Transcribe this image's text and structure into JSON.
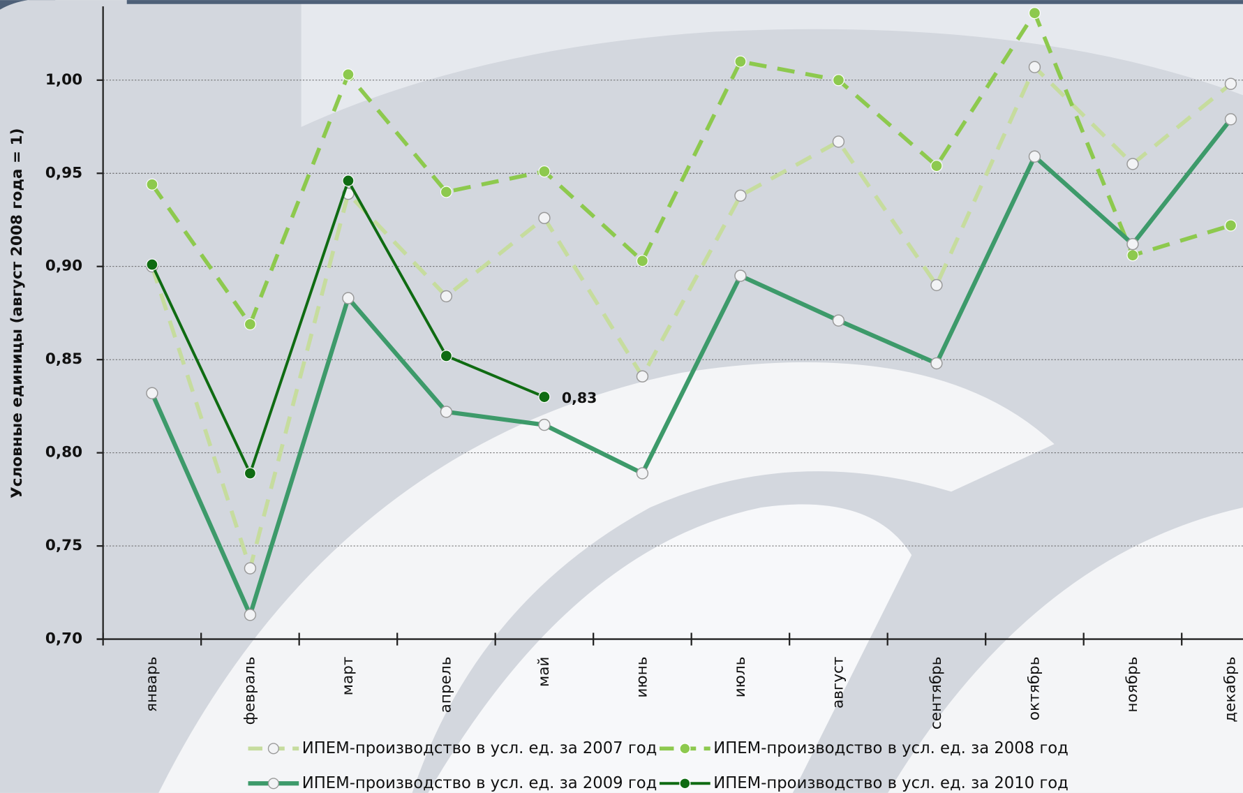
{
  "chart_data": {
    "type": "line",
    "y_label": "Условные единицы (август 2008 года = 1)",
    "categories": [
      "январь",
      "февраль",
      "март",
      "апрель",
      "май",
      "июнь",
      "июль",
      "август",
      "сентябрь",
      "октябрь",
      "ноябрь",
      "декабрь"
    ],
    "ylim": [
      0.7,
      1.04
    ],
    "yticks": [
      {
        "value": 0.7,
        "label": "0,70"
      },
      {
        "value": 0.75,
        "label": "0,75"
      },
      {
        "value": 0.8,
        "label": "0,80"
      },
      {
        "value": 0.85,
        "label": "0,85"
      },
      {
        "value": 0.9,
        "label": "0,90"
      },
      {
        "value": 0.95,
        "label": "0,95"
      },
      {
        "value": 1.0,
        "label": "1,00"
      }
    ],
    "grid": true,
    "series": [
      {
        "name": "ИПЕМ-производство в усл. ед. за 2007 год",
        "color": "#c6dc9e",
        "dash": true,
        "marker": "open",
        "values": [
          0.9,
          0.738,
          0.939,
          0.884,
          0.926,
          0.841,
          0.938,
          0.967,
          0.89,
          1.007,
          0.955,
          0.998
        ]
      },
      {
        "name": "ИПЕМ-производство в усл. ед. за 2008 год",
        "color": "#8dc94e",
        "dash": true,
        "marker": "filled",
        "values": [
          0.944,
          0.869,
          1.003,
          0.94,
          0.951,
          0.903,
          1.01,
          1.0,
          0.954,
          1.036,
          0.906,
          0.922
        ]
      },
      {
        "name": "ИПЕМ-производство в усл. ед. за 2009 год",
        "color": "#3d9a6a",
        "dash": false,
        "marker": "open",
        "values": [
          0.832,
          0.713,
          0.883,
          0.822,
          0.815,
          0.789,
          0.895,
          0.871,
          0.848,
          0.959,
          0.912,
          0.979
        ]
      },
      {
        "name": "ИПЕМ-производство в усл. ед. за 2010 год",
        "color": "#0f6b12",
        "dash": false,
        "marker": "filled",
        "values": [
          0.901,
          0.789,
          0.946,
          0.852,
          0.83,
          null,
          null,
          null,
          null,
          null,
          null,
          null
        ],
        "value_labels": [
          null,
          null,
          null,
          null,
          "0,83",
          null,
          null,
          null,
          null,
          null,
          null,
          null
        ]
      }
    ]
  }
}
